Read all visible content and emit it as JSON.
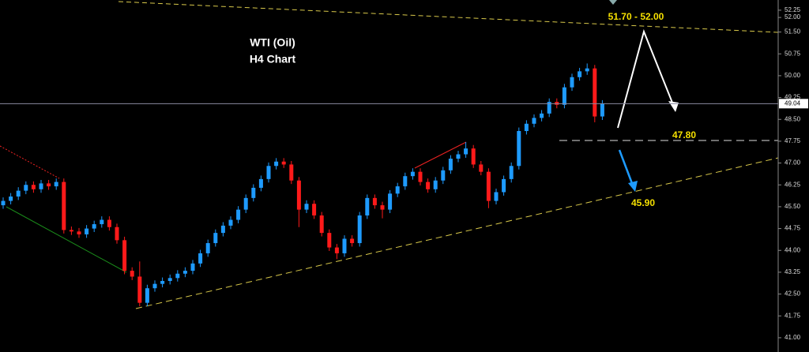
{
  "chart_data": {
    "type": "candlestick",
    "title": "WTI (Oil)",
    "subtitle": "H4 Chart",
    "annotations": [
      "51.70 - 52.00",
      "47.80",
      "45.90"
    ],
    "up_color": "#1e9bff",
    "down_color": "#ff1a1a",
    "last_price": 49.04,
    "ylim": [
      40.51,
      52.6
    ],
    "yticks": [
      {
        "value": 41,
        "label": "41.00"
      },
      {
        "value": 41.75,
        "label": "41.75"
      },
      {
        "value": 42.5,
        "label": "42.50"
      },
      {
        "value": 43.25,
        "label": "43.25"
      },
      {
        "value": 44,
        "label": "44.00"
      },
      {
        "value": 44.75,
        "label": "44.75"
      },
      {
        "value": 45.5,
        "label": "45.50"
      },
      {
        "value": 46.25,
        "label": "46.25"
      },
      {
        "value": 47,
        "label": "47.00"
      },
      {
        "value": 47.75,
        "label": "47.75"
      },
      {
        "value": 48.5,
        "label": "48.50"
      },
      {
        "value": 49.25,
        "label": "49.25"
      },
      {
        "value": 50,
        "label": "50.00"
      },
      {
        "value": 50.75,
        "label": "50.75"
      },
      {
        "value": 51.5,
        "label": "51.50"
      },
      {
        "value": 52,
        "label": "52.00"
      },
      {
        "value": 52.25,
        "label": "52.25"
      }
    ],
    "open": [
      45.55,
      45.7,
      45.85,
      46.05,
      46.25,
      46.1,
      46.3,
      46.2,
      46.35,
      44.7,
      44.65,
      44.55,
      44.75,
      44.9,
      45.05,
      44.8,
      44.35,
      43.3,
      43.1,
      42.2,
      42.7,
      42.85,
      42.95,
      43.05,
      43.2,
      43.3,
      43.55,
      43.9,
      44.25,
      44.6,
      44.85,
      45.05,
      45.4,
      45.8,
      46.15,
      46.45,
      46.9,
      47.05,
      46.95,
      46.4,
      45.4,
      45.6,
      45.2,
      44.6,
      44.1,
      43.9,
      44.4,
      44.25,
      45.2,
      45.8,
      45.55,
      45.4,
      45.95,
      46.2,
      46.55,
      46.7,
      46.35,
      46.1,
      46.4,
      46.75,
      47.15,
      47.3,
      47.5,
      46.95,
      46.7,
      45.7,
      46.0,
      46.45,
      46.9,
      48.1,
      48.35,
      48.55,
      48.7,
      49.1,
      49.0,
      49.6,
      49.95,
      50.15,
      50.25,
      48.6
    ],
    "high": [
      45.82,
      45.97,
      46.17,
      46.37,
      46.37,
      46.42,
      46.42,
      46.47,
      46.47,
      44.82,
      44.77,
      44.87,
      45.02,
      45.17,
      45.17,
      44.92,
      44.47,
      43.42,
      43.62,
      42.82,
      42.97,
      43.07,
      43.17,
      43.32,
      43.42,
      43.67,
      44.02,
      44.37,
      44.72,
      44.97,
      45.17,
      45.52,
      45.92,
      46.27,
      46.57,
      47.02,
      47.17,
      47.17,
      47.07,
      46.52,
      45.72,
      45.72,
      45.32,
      44.72,
      44.22,
      44.52,
      44.52,
      45.32,
      45.92,
      45.92,
      45.67,
      46.07,
      46.32,
      46.67,
      46.82,
      46.82,
      46.47,
      46.52,
      46.87,
      47.27,
      47.42,
      47.72,
      47.62,
      47.07,
      46.82,
      46.12,
      46.57,
      47.02,
      48.22,
      48.47,
      48.67,
      48.82,
      49.22,
      49.22,
      49.72,
      50.07,
      50.27,
      50.42,
      50.37,
      49.16
    ],
    "low": [
      45.43,
      45.58,
      45.73,
      45.93,
      45.98,
      45.98,
      46.08,
      46.08,
      44.58,
      44.53,
      44.43,
      44.43,
      44.63,
      44.78,
      44.68,
      44.23,
      43.18,
      42.98,
      42.08,
      42.08,
      42.58,
      42.73,
      42.83,
      42.93,
      43.08,
      43.18,
      43.43,
      43.78,
      44.13,
      44.48,
      44.73,
      44.93,
      45.28,
      45.68,
      46.03,
      46.33,
      46.78,
      46.83,
      46.28,
      44.8,
      45.28,
      45.08,
      44.48,
      43.98,
      43.7,
      43.78,
      44.13,
      44.13,
      45.08,
      45.43,
      45.1,
      45.28,
      45.83,
      46.08,
      46.43,
      46.23,
      45.98,
      45.98,
      46.28,
      46.63,
      47.03,
      47.18,
      46.83,
      46.58,
      45.45,
      45.58,
      45.88,
      46.33,
      46.78,
      47.98,
      48.23,
      48.43,
      48.58,
      48.88,
      48.88,
      49.48,
      49.83,
      50.03,
      48.4,
      48.48
    ],
    "close": [
      45.7,
      45.85,
      46.05,
      46.25,
      46.1,
      46.3,
      46.2,
      46.35,
      44.7,
      44.65,
      44.55,
      44.75,
      44.9,
      45.05,
      44.8,
      44.35,
      43.3,
      43.1,
      42.2,
      42.7,
      42.85,
      42.95,
      43.05,
      43.2,
      43.3,
      43.55,
      43.9,
      44.25,
      44.6,
      44.85,
      45.05,
      45.4,
      45.8,
      46.15,
      46.45,
      46.9,
      47.05,
      46.95,
      46.4,
      45.4,
      45.6,
      45.2,
      44.6,
      44.1,
      43.9,
      44.4,
      44.25,
      45.2,
      45.8,
      45.55,
      45.4,
      45.95,
      46.2,
      46.55,
      46.7,
      46.35,
      46.1,
      46.4,
      46.75,
      47.15,
      47.3,
      47.5,
      46.95,
      46.7,
      45.7,
      46.0,
      46.45,
      46.9,
      48.1,
      48.35,
      48.55,
      48.7,
      49.1,
      49.0,
      49.6,
      49.95,
      50.15,
      50.25,
      48.6,
      49.04
    ]
  }
}
